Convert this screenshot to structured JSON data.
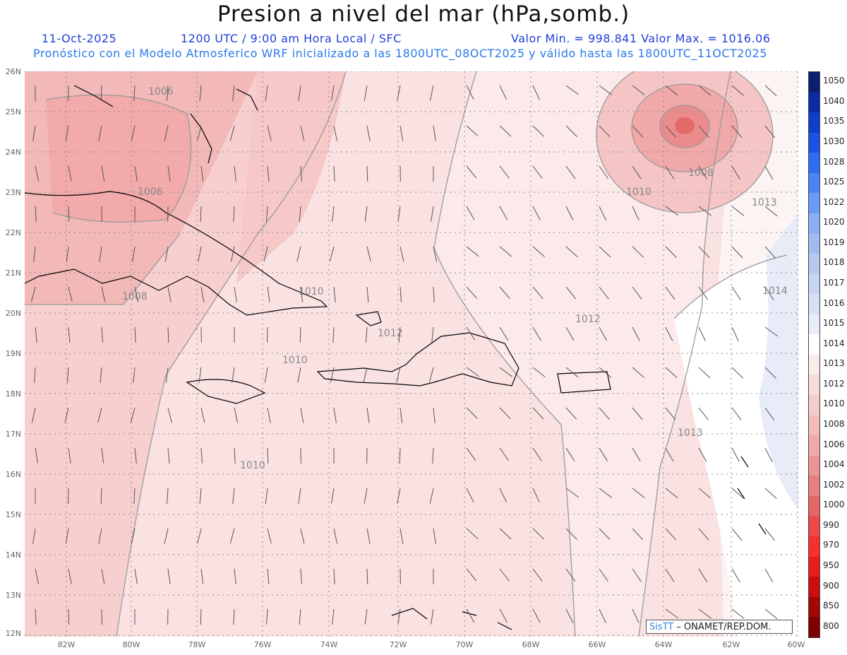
{
  "title": "Presion a nivel del mar (hPa,somb.)",
  "header": {
    "date": "11-Oct-2025",
    "time": "1200 UTC / 9:00 am Hora Local / SFC",
    "stats": "Valor Min. = 998.841  Valor Max. = 1016.06",
    "description": "Pronóstico con el Modelo Atmosferico WRF inicializado a las 1800UTC_08OCT2025 y válido hasta las  1800UTC_11OCT2025"
  },
  "lat_labels": [
    "26N",
    "25N",
    "24N",
    "23N",
    "22N",
    "21N",
    "20N",
    "19N",
    "18N",
    "17N",
    "16N",
    "15N",
    "14N",
    "13N",
    "12N"
  ],
  "lon_labels": [
    "82W",
    "80W",
    "78W",
    "76W",
    "74W",
    "72W",
    "70W",
    "68W",
    "66W",
    "64W",
    "62W",
    "60W"
  ],
  "contour_labels": [
    "1006",
    "1006",
    "1008",
    "1010",
    "1010",
    "1012",
    "1012",
    "1010",
    "1008",
    "1010",
    "1013",
    "1014",
    "1013"
  ],
  "colorbar": {
    "labels": [
      "1050",
      "1040",
      "1035",
      "1030",
      "1028",
      "1025",
      "1022",
      "1020",
      "1019",
      "1018",
      "1017",
      "1016",
      "1015",
      "1014",
      "1013",
      "1012",
      "1010",
      "1008",
      "1006",
      "1004",
      "1002",
      "1000",
      "990",
      "970",
      "950",
      "900",
      "850",
      "800"
    ],
    "colors": [
      "#0b1e6e",
      "#0a2ba3",
      "#0f3ec9",
      "#1a52e6",
      "#2e6cf2",
      "#4a84f5",
      "#6a9bf6",
      "#8aaef2",
      "#a2bbef",
      "#b8c8f0",
      "#c8d4f3",
      "#d8e0f6",
      "#e8edf9",
      "#ffffff",
      "#fbecec",
      "#f8dcdc",
      "#f5cccc",
      "#f2bcbc",
      "#eea9a9",
      "#ea9595",
      "#e67f7f",
      "#e46666",
      "#ee4a4a",
      "#f43030",
      "#e81c1c",
      "#c90f0f",
      "#a50707",
      "#7e0000"
    ]
  },
  "credit": {
    "logo": "SisTT",
    "text": " – ONAMET/REP.DOM."
  }
}
